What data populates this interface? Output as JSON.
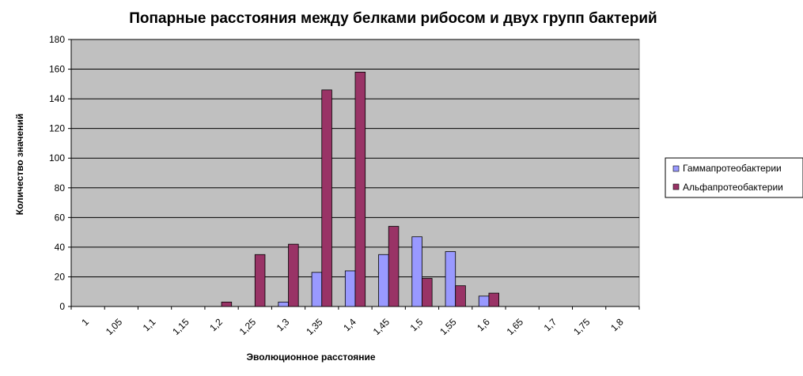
{
  "chart_data": {
    "type": "bar",
    "title": "Попарные расстояния между белками рибосом и двух групп бактерий",
    "xlabel": "Эволюционное расстояние",
    "ylabel": "Количество значений",
    "categories": [
      "1",
      "1,05",
      "1,1",
      "1,15",
      "1,2",
      "1,25",
      "1,3",
      "1,35",
      "1,4",
      "1,45",
      "1,5",
      "1,55",
      "1,6",
      "1,65",
      "1,7",
      "1,75",
      "1,8"
    ],
    "series": [
      {
        "name": "Гаммапротеобактерии",
        "color": "#9999ff",
        "values": [
          0,
          0,
          0,
          0,
          0,
          0,
          3,
          23,
          24,
          35,
          47,
          37,
          7,
          0,
          0,
          0,
          0
        ]
      },
      {
        "name": "Альфапротеобактерии",
        "color": "#993366",
        "values": [
          0,
          0,
          0,
          0,
          3,
          35,
          42,
          146,
          158,
          54,
          19,
          14,
          9,
          0,
          0,
          0,
          0
        ]
      }
    ],
    "ylim": [
      0,
      180
    ],
    "yticks": [
      0,
      20,
      40,
      60,
      80,
      100,
      120,
      140,
      160,
      180
    ],
    "grid": true,
    "legend_position": "right",
    "plot_background": "#c0c0c0"
  }
}
